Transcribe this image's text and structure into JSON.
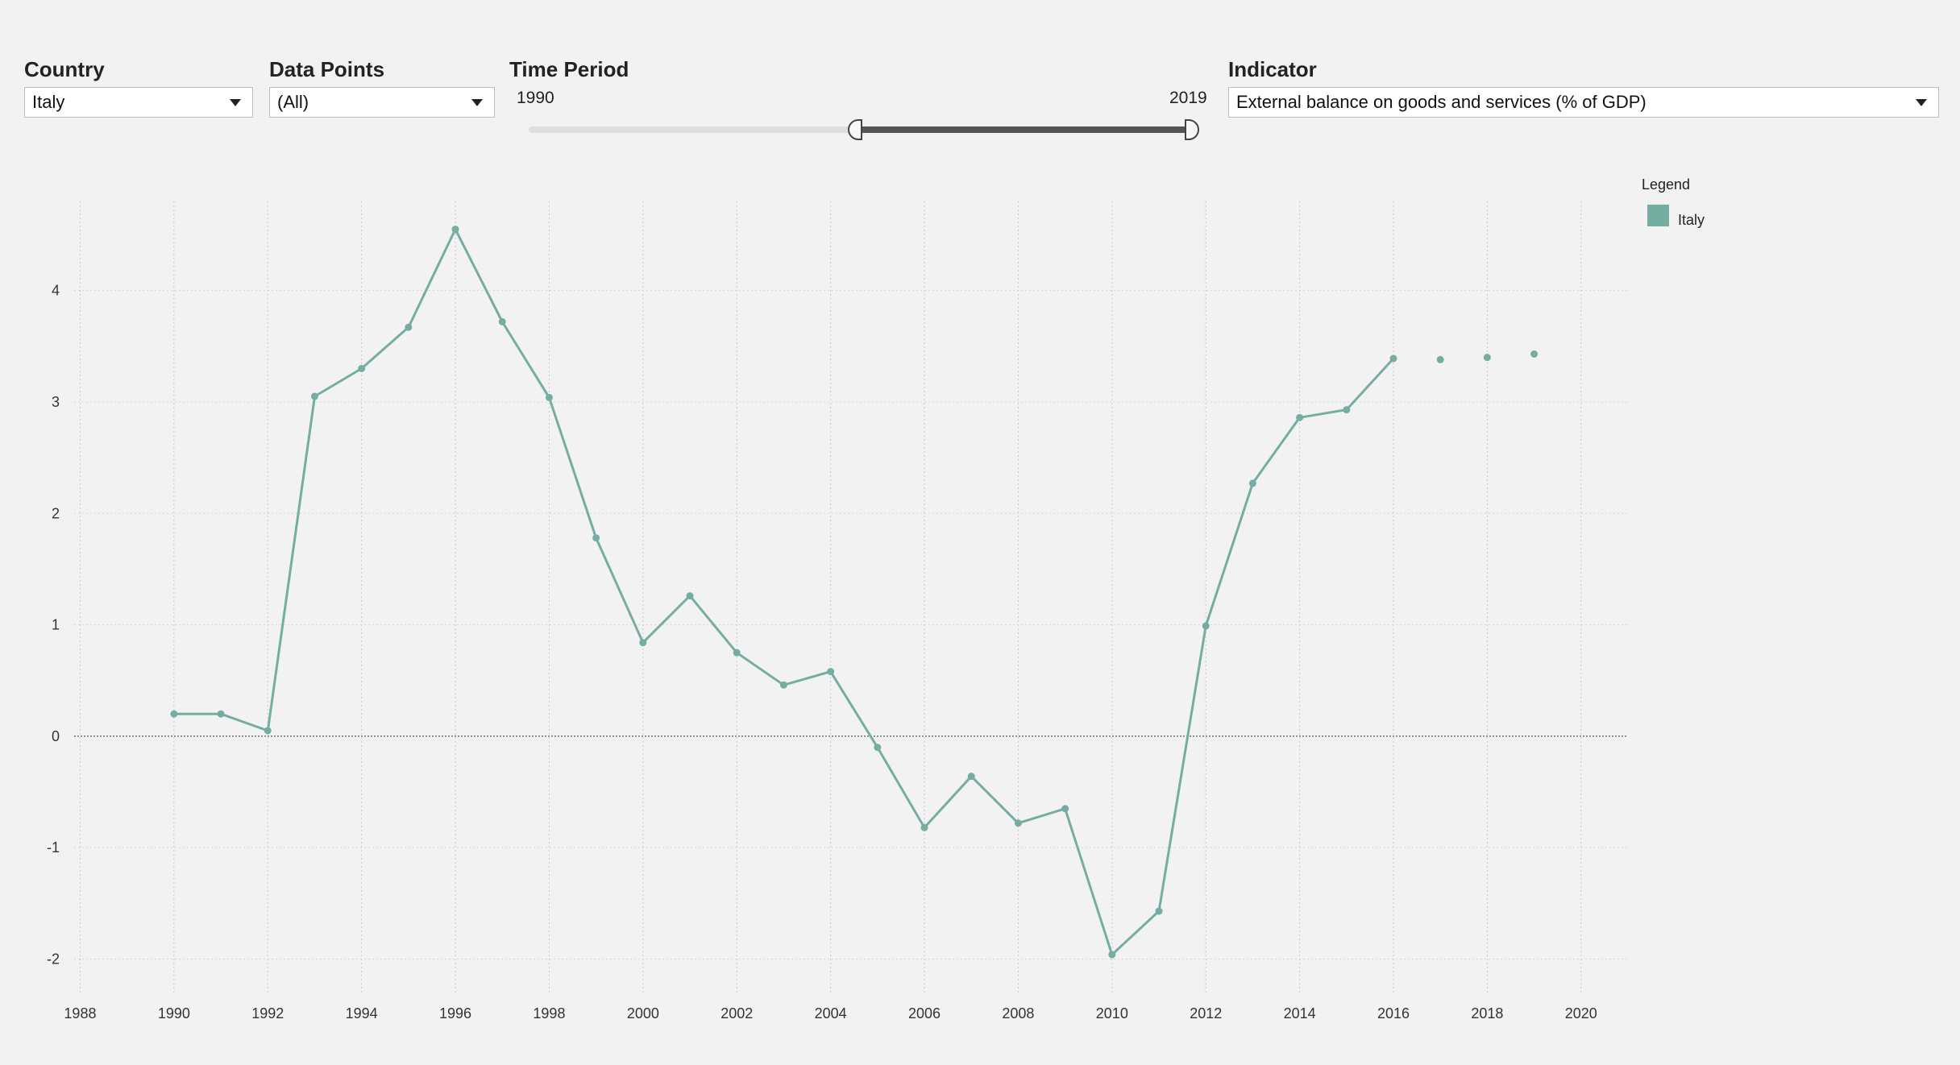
{
  "filters": {
    "country": {
      "label": "Country",
      "value": "Italy"
    },
    "data_points": {
      "label": "Data Points",
      "value": "(All)"
    },
    "time_period": {
      "label": "Time Period",
      "start": "1990",
      "end": "2019",
      "start_fraction": 0.5,
      "end_fraction": 1.0
    },
    "indicator": {
      "label": "Indicator",
      "value": "External balance on goods and services (% of GDP)"
    }
  },
  "legend": {
    "title": "Legend",
    "items": [
      {
        "label": "Italy",
        "color": "#76ada3"
      }
    ]
  },
  "chart_data": {
    "type": "line",
    "title": "",
    "xlabel": "",
    "ylabel": "",
    "xlim": [
      1987.7,
      2021
    ],
    "ylim": [
      -2.3,
      4.8
    ],
    "grid": true,
    "legend_position": "top-right",
    "x_ticks": [
      1988,
      1990,
      1992,
      1994,
      1996,
      1998,
      2000,
      2002,
      2004,
      2006,
      2008,
      2010,
      2012,
      2014,
      2016,
      2018,
      2020
    ],
    "y_ticks": [
      -2,
      -1,
      0,
      1,
      2,
      3,
      4
    ],
    "series": [
      {
        "name": "Italy",
        "color": "#76ada3",
        "points": [
          [
            1990,
            0.2
          ],
          [
            1991,
            0.2
          ],
          [
            1992,
            0.05
          ],
          [
            1993,
            3.05
          ],
          [
            1994,
            3.3
          ],
          [
            1995,
            3.67
          ],
          [
            1996,
            4.55
          ],
          [
            1997,
            3.72
          ],
          [
            1998,
            3.04
          ],
          [
            1999,
            1.78
          ],
          [
            2000,
            0.84
          ],
          [
            2001,
            1.26
          ],
          [
            2002,
            0.75
          ],
          [
            2003,
            0.46
          ],
          [
            2004,
            0.58
          ],
          [
            2005,
            -0.1
          ],
          [
            2006,
            -0.82
          ],
          [
            2007,
            -0.36
          ],
          [
            2008,
            -0.78
          ],
          [
            2009,
            -0.65
          ],
          [
            2010,
            -1.96
          ],
          [
            2011,
            -1.57
          ],
          [
            2012,
            0.99
          ],
          [
            2013,
            2.27
          ],
          [
            2014,
            2.86
          ],
          [
            2015,
            2.93
          ],
          [
            2016,
            3.39
          ],
          [
            2017,
            3.38
          ],
          [
            2018,
            3.4
          ],
          [
            2019,
            3.43
          ]
        ],
        "connected_until": 2016
      }
    ]
  }
}
